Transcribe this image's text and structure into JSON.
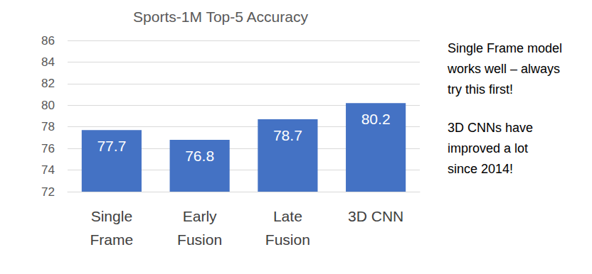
{
  "chart_data": {
    "type": "bar",
    "title": "Sports-1M Top-5 Accuracy",
    "categories": [
      "Single\nFrame",
      "Early\nFusion",
      "Late\nFusion",
      "3D CNN"
    ],
    "values": [
      77.7,
      76.8,
      78.7,
      80.2
    ],
    "color": "#4472c4",
    "ylim": [
      72,
      86
    ],
    "yticks": [
      72,
      74,
      76,
      78,
      80,
      82,
      84,
      86
    ],
    "grid": true,
    "data_labels": true,
    "annotations": [
      "Single Frame model\nworks well – always\ntry this first!",
      "3D CNNs have\nimproved a lot\nsince 2014!"
    ]
  }
}
